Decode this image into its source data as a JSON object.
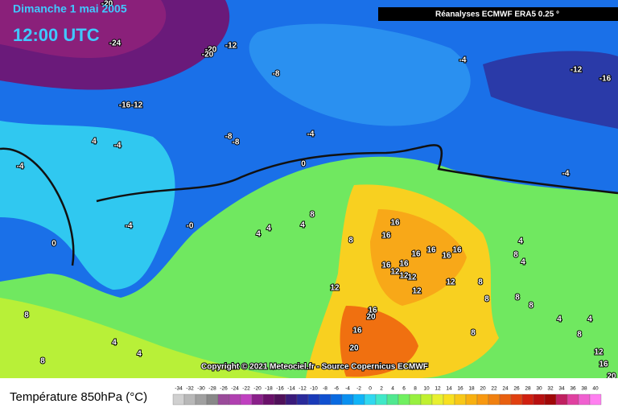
{
  "header": {
    "date": "Dimanche 1 mai 2005",
    "time": "12:00 UTC",
    "source": "Réanalyses ECMWF ERA5 0.25 °"
  },
  "copyright": "Copyright © 2021 Meteociel.fr - Source Copernicus ECMWF",
  "legend": {
    "title": "Température 850hPa (°C)",
    "ticks": [
      -34,
      -32,
      -30,
      -28,
      -26,
      -24,
      -22,
      -20,
      -18,
      -16,
      -14,
      -12,
      -10,
      -8,
      -6,
      -4,
      -2,
      0,
      2,
      4,
      6,
      8,
      10,
      12,
      14,
      16,
      18,
      20,
      22,
      24,
      26,
      28,
      30,
      32,
      34,
      36,
      38,
      40
    ],
    "colors": [
      "#d0d0d0",
      "#b8b8b8",
      "#a0a0a0",
      "#888888",
      "#9a4b9a",
      "#b040b0",
      "#c040c0",
      "#8a208a",
      "#6a106a",
      "#50105a",
      "#3a1a7a",
      "#2a2a9a",
      "#1a3ab8",
      "#1050d0",
      "#0a6ae0",
      "#0a90f0",
      "#10b4f8",
      "#30d8f0",
      "#40e8c8",
      "#50e890",
      "#70f060",
      "#98f040",
      "#c0f030",
      "#e8f030",
      "#f8e020",
      "#f8c818",
      "#f8b010",
      "#f89810",
      "#f08010",
      "#e86010",
      "#e04010",
      "#d02010",
      "#b81010",
      "#a00808",
      "#c02060",
      "#e040a0",
      "#f060d0",
      "#ff80f0"
    ]
  },
  "contour_labels": [
    "-20",
    "-24",
    "-20",
    "-12",
    "-20",
    "-8",
    "-16",
    "-12",
    "-4",
    "-12",
    "-16",
    "4",
    "-4",
    "-4",
    "-8",
    "-8",
    "-4",
    "0",
    "-4",
    "-4",
    "-0",
    "4",
    "4",
    "4",
    "8",
    "0",
    "16",
    "8",
    "16",
    "16",
    "16",
    "16",
    "16",
    "4",
    "8",
    "4",
    "16",
    "12",
    "16",
    "12",
    "12",
    "12",
    "12",
    "12",
    "8",
    "8",
    "8",
    "8",
    "16",
    "20",
    "16",
    "8",
    "20",
    "4",
    "4",
    "8",
    "8",
    "4",
    "4",
    "12",
    "16",
    "20",
    "8"
  ]
}
